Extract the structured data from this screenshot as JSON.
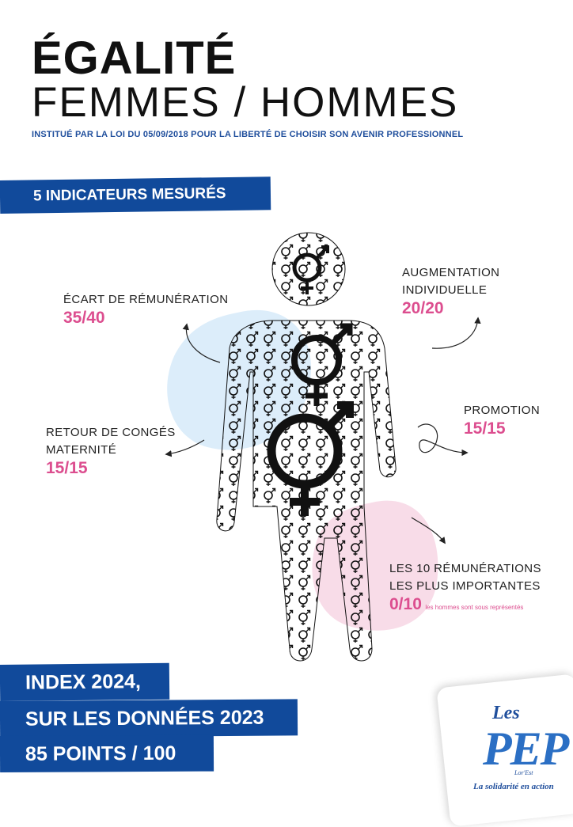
{
  "header": {
    "title_line1": "ÉGALITÉ",
    "title_line2": "FEMMES / HOMMES",
    "subtitle": "INSTITUÉ PAR LA LOI DU 05/09/2018 POUR LA LIBERTÉ DE CHOISIR SON AVENIR PROFESSIONNEL"
  },
  "indicators_band": "5 INDICATEURS MESURÉS",
  "indicators": {
    "ecart": {
      "label": "ÉCART DE RÉMUNÉRATION",
      "value": "35/40"
    },
    "augmentation": {
      "label_line1": "AUGMENTATION",
      "label_line2": "INDIVIDUELLE",
      "value": "20/20"
    },
    "promotion": {
      "label": "PROMOTION",
      "value": "15/15"
    },
    "retour": {
      "label_line1": "RETOUR DE CONGÉS",
      "label_line2": "MATERNITÉ",
      "value": "15/15"
    },
    "remunerations": {
      "label_line1": "LES 10 RÉMUNÉRATIONS",
      "label_line2": "LES PLUS IMPORTANTES",
      "value": "0/10",
      "note": "les hommes sont sous représentés"
    }
  },
  "index": {
    "line1": "INDEX 2024,",
    "line2": "SUR LES DONNÉES 2023",
    "line3": "85 POINTS / 100"
  },
  "logo": {
    "les": "Les",
    "pep": "PEP",
    "region": "Lor'Est",
    "tagline": "La solidarité en action"
  },
  "colors": {
    "brand_blue": "#114a9b",
    "accent_pink": "#dc4e8f",
    "blob_blue": "#dcedfa",
    "blob_pink": "#f8dce8"
  },
  "icons": [
    "gender-symbol-icon",
    "arrow-icon"
  ]
}
